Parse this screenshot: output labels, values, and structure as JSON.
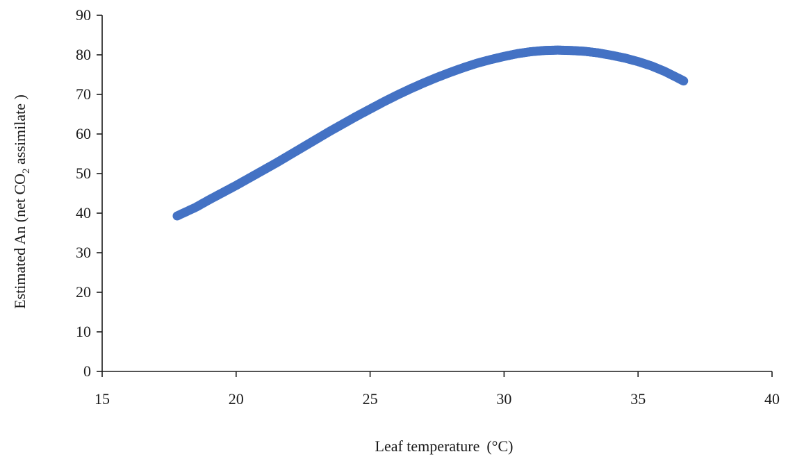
{
  "chart_data": {
    "type": "scatter",
    "title": "",
    "xlabel": "Leaf temperature",
    "xlabel_unit": "(°C)",
    "ylabel_prefix": "Estimated  An  (net  CO",
    "ylabel_subscript": "2",
    "ylabel_suffix": " assimilate  )",
    "xlim": [
      15,
      40
    ],
    "ylim": [
      0,
      90
    ],
    "xticks": [
      15,
      20,
      25,
      30,
      35,
      40
    ],
    "yticks": [
      0,
      10,
      20,
      30,
      40,
      50,
      60,
      70,
      80,
      90
    ],
    "grid": false,
    "legend": "none",
    "series": [
      {
        "color": "#4472C4",
        "x": [
          17.8,
          18.5,
          19.0,
          19.5,
          20.0,
          20.5,
          21.0,
          21.5,
          22.0,
          22.5,
          23.0,
          23.5,
          24.0,
          24.5,
          25.0,
          25.5,
          26.0,
          26.5,
          27.0,
          27.5,
          28.0,
          28.5,
          29.0,
          29.5,
          30.0,
          30.5,
          31.0,
          31.5,
          32.0,
          32.5,
          33.0,
          33.5,
          34.0,
          34.5,
          35.0,
          35.5,
          36.0,
          36.5,
          36.7
        ],
        "y": [
          39.3,
          41.5,
          43.4,
          45.2,
          47.0,
          48.9,
          50.8,
          52.7,
          54.7,
          56.7,
          58.7,
          60.7,
          62.6,
          64.5,
          66.3,
          68.1,
          69.8,
          71.4,
          72.9,
          74.3,
          75.6,
          76.8,
          77.9,
          78.8,
          79.6,
          80.3,
          80.8,
          81.1,
          81.2,
          81.1,
          80.9,
          80.5,
          79.9,
          79.2,
          78.3,
          77.2,
          75.8,
          74.1,
          73.4
        ]
      }
    ]
  }
}
